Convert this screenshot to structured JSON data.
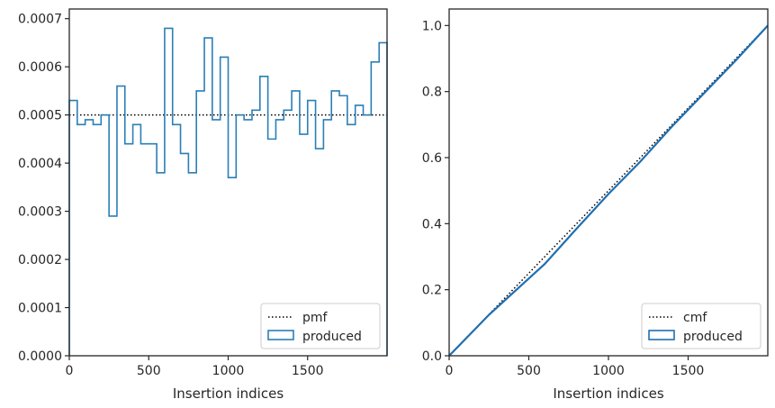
{
  "chart_data": [
    {
      "type": "histogram",
      "xlabel": "Insertion indices",
      "xlim": [
        0,
        2000
      ],
      "ylim": [
        0,
        0.00072
      ],
      "xticks": [
        0,
        500,
        1000,
        1500
      ],
      "xtick_labels": [
        "0",
        "500",
        "1000",
        "1500"
      ],
      "yticks": [
        0,
        0.0001,
        0.0002,
        0.0003,
        0.0004,
        0.0005,
        0.0006,
        0.0007
      ],
      "ytick_labels": [
        "0.0000",
        "0.0001",
        "0.0002",
        "0.0003",
        "0.0004",
        "0.0005",
        "0.0006",
        "0.0007"
      ],
      "grid": false,
      "legend_position": "bottom-right",
      "reference": {
        "name": "pmf",
        "value": 0.0005,
        "style": "dotted",
        "color": "#000000"
      },
      "series": [
        {
          "name": "produced",
          "color": "#2a7fb8",
          "bin_edges": [
            0,
            50,
            100,
            150,
            200,
            250,
            300,
            350,
            400,
            450,
            500,
            550,
            600,
            650,
            700,
            750,
            800,
            850,
            900,
            950,
            1000,
            1050,
            1100,
            1150,
            1200,
            1250,
            1300,
            1350,
            1400,
            1450,
            1500,
            1550,
            1600,
            1650,
            1700,
            1750,
            1800,
            1850,
            1900,
            1950,
            2000
          ],
          "values": [
            0.00053,
            0.00048,
            0.00049,
            0.00048,
            0.0005,
            0.00029,
            0.00056,
            0.00044,
            0.00048,
            0.00044,
            0.00044,
            0.00038,
            0.00068,
            0.00048,
            0.00042,
            0.00038,
            0.00055,
            0.00066,
            0.00049,
            0.00062,
            0.00037,
            0.0005,
            0.00049,
            0.00051,
            0.00058,
            0.00045,
            0.00049,
            0.00051,
            0.00055,
            0.00046,
            0.00053,
            0.00043,
            0.00049,
            0.00055,
            0.00054,
            0.00048,
            0.00052,
            0.0005,
            0.00061,
            0.00065
          ]
        }
      ]
    },
    {
      "type": "line",
      "xlabel": "Insertion indices",
      "xlim": [
        0,
        2000
      ],
      "ylim": [
        0,
        1.05
      ],
      "xticks": [
        0,
        500,
        1000,
        1500
      ],
      "xtick_labels": [
        "0",
        "500",
        "1000",
        "1500"
      ],
      "yticks": [
        0,
        0.2,
        0.4,
        0.6,
        0.8,
        1.0
      ],
      "ytick_labels": [
        "0.0",
        "0.2",
        "0.4",
        "0.6",
        "0.8",
        "1.0"
      ],
      "grid": false,
      "legend_position": "bottom-right",
      "reference": {
        "name": "cmf",
        "x": [
          0,
          2000
        ],
        "y": [
          0,
          1.0
        ],
        "style": "dotted",
        "color": "#000000"
      },
      "series": [
        {
          "name": "produced",
          "color": "#1f6fb0",
          "x": [
            0,
            250,
            500,
            600,
            800,
            1000,
            1200,
            1400,
            1600,
            1800,
            2000
          ],
          "y": [
            0,
            0.124,
            0.234,
            0.278,
            0.385,
            0.49,
            0.588,
            0.695,
            0.795,
            0.895,
            1.0
          ]
        }
      ]
    }
  ]
}
